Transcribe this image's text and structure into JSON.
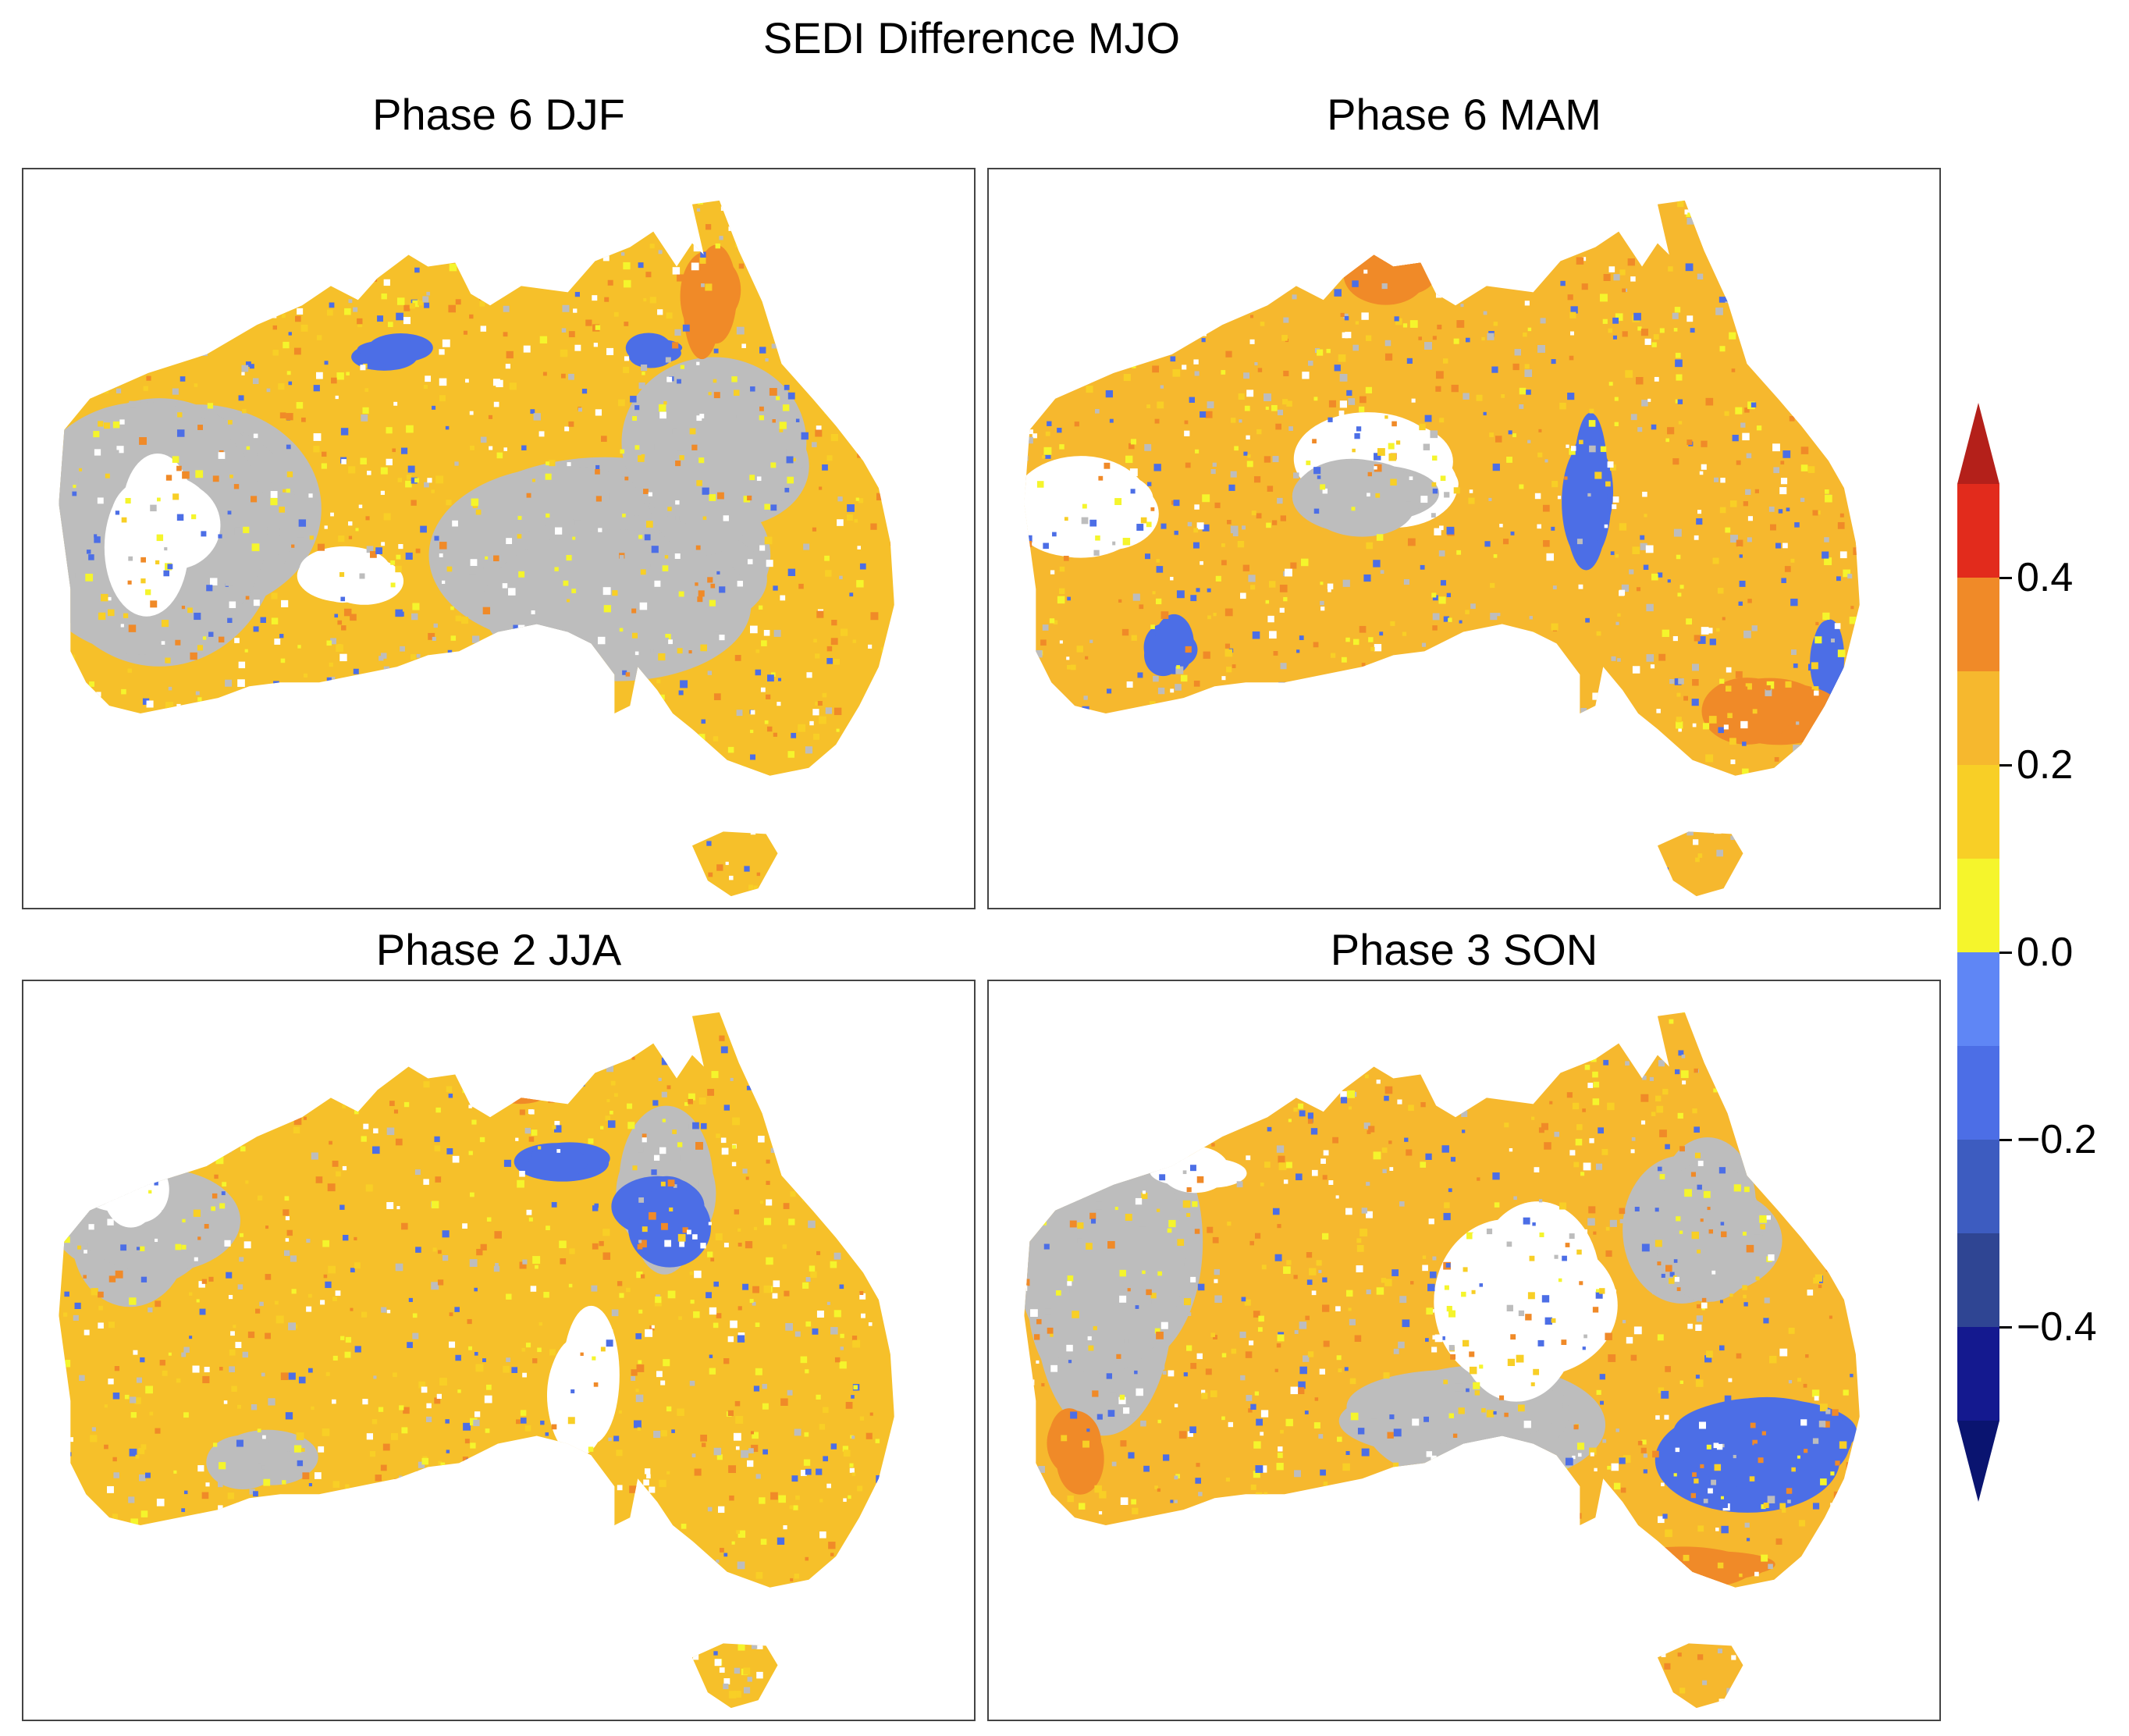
{
  "figure": {
    "title": "SEDI Difference MJO"
  },
  "panels": [
    {
      "id": "p1",
      "title": "Phase 6 DJF"
    },
    {
      "id": "p2",
      "title": "Phase 6 MAM"
    },
    {
      "id": "p3",
      "title": "Phase 2 JJA"
    },
    {
      "id": "p4",
      "title": "Phase 3 SON"
    }
  ],
  "colorbar": {
    "min": -0.5,
    "max": 0.5,
    "extend": "both",
    "ticks": [
      {
        "value": 0.4,
        "label": "0.4"
      },
      {
        "value": 0.2,
        "label": "0.2"
      },
      {
        "value": 0.0,
        "label": "0.0"
      },
      {
        "value": -0.2,
        "label": "−0.2"
      },
      {
        "value": -0.4,
        "label": "−0.4"
      }
    ],
    "bins": [
      {
        "from": -0.5,
        "to": -0.4,
        "color": "#14198f"
      },
      {
        "from": -0.4,
        "to": -0.3,
        "color": "#2f4593"
      },
      {
        "from": -0.3,
        "to": -0.2,
        "color": "#3d5cc0"
      },
      {
        "from": -0.2,
        "to": -0.1,
        "color": "#4c6ee6"
      },
      {
        "from": -0.1,
        "to": 0.0,
        "color": "#5f86f5"
      },
      {
        "from": 0.0,
        "to": 0.1,
        "color": "#f5f52c"
      },
      {
        "from": 0.1,
        "to": 0.2,
        "color": "#f8cf26"
      },
      {
        "from": 0.2,
        "to": 0.3,
        "color": "#f6b82e"
      },
      {
        "from": 0.3,
        "to": 0.4,
        "color": "#f08a28"
      },
      {
        "from": 0.4,
        "to": 0.5,
        "color": "#e22b1c"
      }
    ],
    "under_color": "#0a1470",
    "over_color": "#b4201a"
  },
  "map_colors": {
    "not_significant": "#bdbdbd",
    "land_fill": "#f6c02a"
  }
}
